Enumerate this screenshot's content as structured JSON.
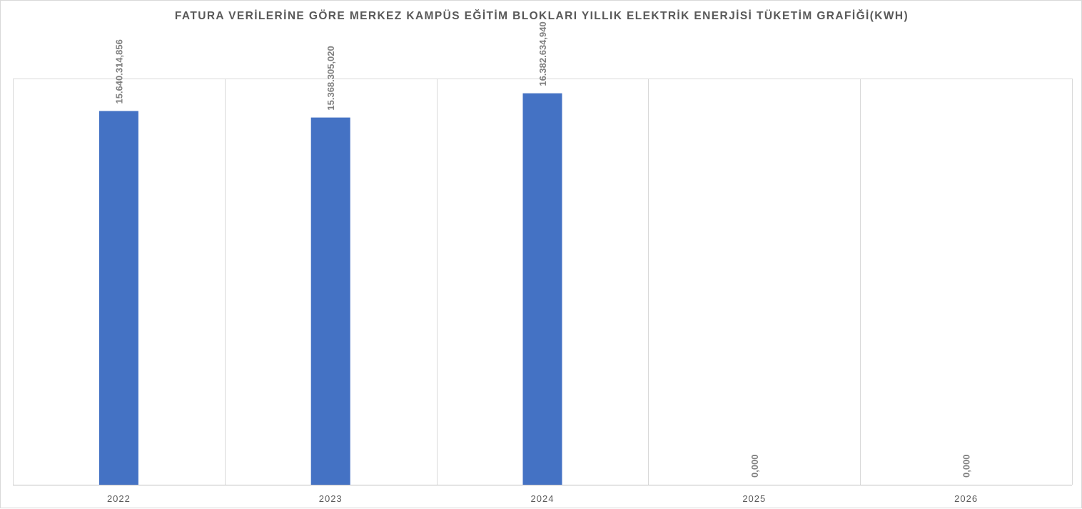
{
  "chart_data": {
    "type": "bar",
    "title": "FATURA VERİLERİNE GÖRE MERKEZ KAMPÜS EĞİTİM BLOKLARI YILLIK ELEKTRİK ENERJİSİ TÜKETİM GRAFİĞİ(KWH)",
    "xlabel": "",
    "ylabel": "",
    "categories": [
      "2022",
      "2023",
      "2024",
      "2025",
      "2026"
    ],
    "values": [
      15640314.856,
      15368305.02,
      16382634.94,
      0,
      0
    ],
    "data_labels": [
      "15.640.314,856",
      "15.368.305,020",
      "16.382.634,940",
      "0,000",
      "0,000"
    ],
    "ylim": [
      0,
      17000000
    ],
    "grid": "vertical",
    "legend": "none",
    "bar_color": "#4472C4"
  }
}
